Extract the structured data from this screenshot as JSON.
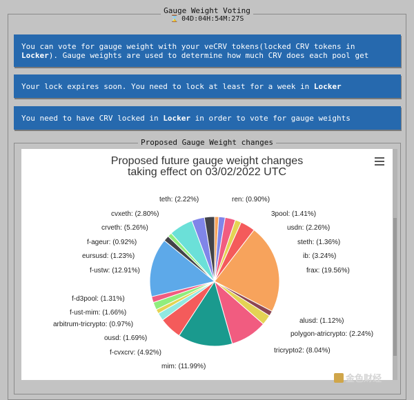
{
  "header": {
    "section_title": "Gauge Weight Voting",
    "timer": "04D:04H:54M:27S"
  },
  "info_boxes": [
    {
      "pre": "You can vote for gauge weight with your veCRV tokens(locked CRV tokens in ",
      "bold": "Locker",
      "post": "). Gauge weights are used to determine how much CRV does each pool get"
    },
    {
      "pre": "Your lock expires soon. You need to lock at least for a week in ",
      "bold": "Locker",
      "post": ""
    },
    {
      "pre": "You need to have CRV locked in ",
      "bold": "Locker",
      "post": " in order to vote for gauge weights"
    }
  ],
  "chart_section_title": "Proposed Gauge Weight changes",
  "watermark": "金色财经",
  "colors": {
    "info_bg": "#2669ae",
    "page_bg": "#c3c3c3"
  },
  "chart_data": {
    "type": "pie",
    "title_line1": "Proposed future gauge weight changes",
    "title_line2": "taking effect on 03/02/2022 UTC",
    "slices": [
      {
        "name": "ren",
        "value": 0.9,
        "color": "#f7a35c"
      },
      {
        "name": "3pool",
        "value": 1.41,
        "color": "#8085e9"
      },
      {
        "name": "usdn",
        "value": 2.26,
        "color": "#f15c80"
      },
      {
        "name": "steth",
        "value": 1.36,
        "color": "#e4d354"
      },
      {
        "name": "ib",
        "value": 3.24,
        "color": "#f45b5b"
      },
      {
        "name": "frax",
        "value": 19.56,
        "color": "#f7a35c"
      },
      {
        "name": "alusd",
        "value": 1.12,
        "color": "#8d4653"
      },
      {
        "name": "polygon-atricrypto",
        "value": 2.24,
        "color": "#e4d354"
      },
      {
        "name": "tricrypto2",
        "value": 8.04,
        "color": "#f15c80"
      },
      {
        "name": "mim",
        "value": 11.99,
        "color": "#1a9a8e"
      },
      {
        "name": "f-cvxcrv",
        "value": 4.92,
        "color": "#f45b5b"
      },
      {
        "name": "ousd",
        "value": 1.69,
        "color": "#91e8e1"
      },
      {
        "name": "arbitrum-tricrypto",
        "value": 0.97,
        "color": "#e4d354"
      },
      {
        "name": "f-ust-mim",
        "value": 1.66,
        "color": "#90ed7d"
      },
      {
        "name": "f-d3pool",
        "value": 1.31,
        "color": "#f15c80"
      },
      {
        "name": "f-ustw",
        "value": 12.91,
        "color": "#5da9e9"
      },
      {
        "name": "eursusd",
        "value": 1.23,
        "color": "#434348"
      },
      {
        "name": "f-ageur",
        "value": 0.92,
        "color": "#90ed7d"
      },
      {
        "name": "crveth",
        "value": 5.26,
        "color": "#6be0d8"
      },
      {
        "name": "cvxeth",
        "value": 2.8,
        "color": "#8085e9"
      },
      {
        "name": "teth",
        "value": 2.22,
        "color": "#434348"
      }
    ],
    "labels": [
      {
        "text": "teth: (2.22%)"
      },
      {
        "text": "ren: (0.90%)"
      },
      {
        "text": "3pool: (1.41%)"
      },
      {
        "text": "cvxeth: (2.80%)"
      },
      {
        "text": "usdn: (2.26%)"
      },
      {
        "text": "crveth: (5.26%)"
      },
      {
        "text": "f-ageur: (0.92%)"
      },
      {
        "text": "steth: (1.36%)"
      },
      {
        "text": "eursusd: (1.23%)"
      },
      {
        "text": "ib: (3.24%)"
      },
      {
        "text": "f-ustw: (12.91%)"
      },
      {
        "text": "frax: (19.56%)"
      },
      {
        "text": "f-d3pool: (1.31%)"
      },
      {
        "text": "f-ust-mim: (1.66%)"
      },
      {
        "text": "alusd: (1.12%)"
      },
      {
        "text": "arbitrum-tricrypto: (0.97%)"
      },
      {
        "text": "polygon-atricrypto: (2.24%)"
      },
      {
        "text": "ousd: (1.69%)"
      },
      {
        "text": "f-cvxcrv: (4.92%)"
      },
      {
        "text": "tricrypto2: (8.04%)"
      },
      {
        "text": "mim: (11.99%)"
      }
    ]
  }
}
